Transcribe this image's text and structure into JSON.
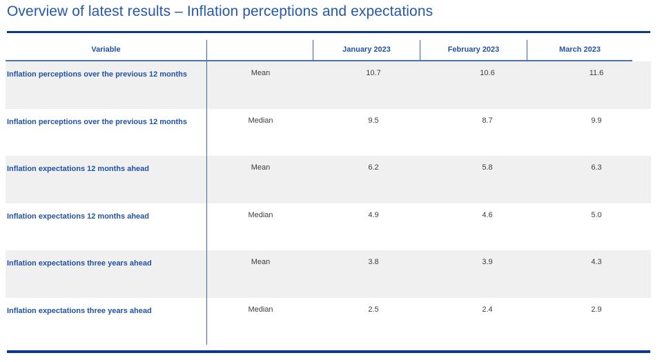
{
  "title": "Overview of latest results – Inflation perceptions and expectations",
  "table": {
    "header": {
      "variable": "Variable",
      "stat": "",
      "months": [
        "January 2023",
        "February 2023",
        "March 2023"
      ]
    },
    "rows": [
      {
        "variable": "Inflation perceptions over the previous 12 months",
        "stat": "Mean",
        "values": [
          "10.7",
          "10.6",
          "11.6"
        ]
      },
      {
        "variable": "Inflation perceptions over the previous 12 months",
        "stat": "Median",
        "values": [
          "9.5",
          "8.7",
          "9.9"
        ]
      },
      {
        "variable": "Inflation expectations 12 months ahead",
        "stat": "Mean",
        "values": [
          "6.2",
          "5.8",
          "6.3"
        ]
      },
      {
        "variable": "Inflation expectations 12 months ahead",
        "stat": "Median",
        "values": [
          "4.9",
          "4.6",
          "5.0"
        ]
      },
      {
        "variable": "Inflation expectations three years ahead",
        "stat": "Mean",
        "values": [
          "3.8",
          "3.9",
          "4.3"
        ]
      },
      {
        "variable": "Inflation expectations three years ahead",
        "stat": "Median",
        "values": [
          "2.5",
          "2.4",
          "2.9"
        ]
      }
    ]
  },
  "colors": {
    "title_blue": "#2458a8",
    "table_text_blue": "#2152a3",
    "rule_navy": "#0a3690",
    "divider_blue": "#3a62ad",
    "header_underline_blue": "#4a71ba",
    "row_stripe_gray": "#f0f0f1",
    "value_text": "#3d3d3d"
  },
  "chart_data": {
    "type": "table",
    "title": "Overview of latest results – Inflation perceptions and expectations",
    "categories": [
      "January 2023",
      "February 2023",
      "March 2023"
    ],
    "series": [
      {
        "name": "Inflation perceptions over the previous 12 months — Mean",
        "values": [
          10.7,
          10.6,
          11.6
        ]
      },
      {
        "name": "Inflation perceptions over the previous 12 months — Median",
        "values": [
          9.5,
          8.7,
          9.9
        ]
      },
      {
        "name": "Inflation expectations 12 months ahead — Mean",
        "values": [
          6.2,
          5.8,
          6.3
        ]
      },
      {
        "name": "Inflation expectations 12 months ahead — Median",
        "values": [
          4.9,
          4.6,
          5.0
        ]
      },
      {
        "name": "Inflation expectations three years ahead — Mean",
        "values": [
          3.8,
          3.9,
          4.3
        ]
      },
      {
        "name": "Inflation expectations three years ahead — Median",
        "values": [
          2.5,
          2.4,
          2.9
        ]
      }
    ]
  }
}
